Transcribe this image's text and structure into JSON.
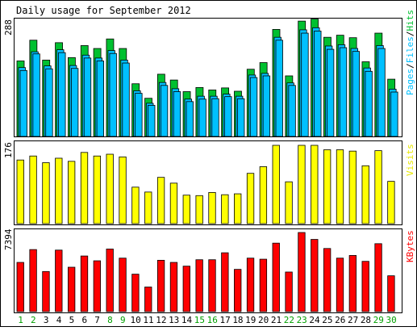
{
  "colors": {
    "background": "#FFFFFF",
    "panel_border": "#000000",
    "hits": "#00C030",
    "files": "#00C0FF",
    "pages": "#00C0FF",
    "visits": "#FFFF00",
    "kbytes": "#FF0000",
    "weekday_label": "#000000",
    "weekend_label": "#00A000"
  },
  "chart_data": [
    {
      "type": "bar",
      "title": "Daily usage for September 2012",
      "ymax_label": "288",
      "legend": {
        "pages": "Pages",
        "sep1": "/",
        "files": "Files",
        "sep2": "/",
        "hits": "Hits"
      },
      "categories": [
        "1",
        "2",
        "3",
        "4",
        "5",
        "6",
        "7",
        "8",
        "9",
        "10",
        "11",
        "12",
        "13",
        "14",
        "15",
        "16",
        "17",
        "18",
        "19",
        "20",
        "21",
        "22",
        "23",
        "24",
        "25",
        "26",
        "27",
        "28",
        "29",
        "30"
      ],
      "ylim": [
        0,
        288
      ],
      "series": [
        {
          "name": "Hits",
          "values": [
            182,
            232,
            184,
            226,
            190,
            219,
            212,
            235,
            212,
            127,
            92,
            150,
            136,
            108,
            118,
            112,
            117,
            109,
            162,
            178,
            258,
            146,
            278,
            283,
            239,
            244,
            238,
            180,
            249,
            138
          ]
        },
        {
          "name": "Files",
          "values": [
            166,
            204,
            170,
            209,
            171,
            196,
            189,
            207,
            184,
            110,
            80,
            130,
            115,
            90,
            97,
            97,
            102,
            97,
            148,
            152,
            239,
            129,
            257,
            262,
            218,
            221,
            212,
            165,
            219,
            114
          ]
        },
        {
          "name": "Pages",
          "values": [
            159,
            199,
            163,
            202,
            164,
            189,
            182,
            200,
            177,
            104,
            75,
            123,
            108,
            84,
            90,
            91,
            96,
            91,
            142,
            146,
            232,
            123,
            249,
            254,
            210,
            214,
            205,
            157,
            212,
            107
          ]
        }
      ]
    },
    {
      "type": "bar",
      "ymax_label": "176",
      "legend": "Visits",
      "ylim": [
        0,
        176
      ],
      "series": [
        {
          "name": "Visits",
          "values": [
            143,
            152,
            137,
            147,
            140,
            160,
            152,
            156,
            150,
            82,
            71,
            104,
            91,
            64,
            63,
            70,
            65,
            67,
            113,
            128,
            176,
            94,
            176,
            176,
            166,
            166,
            163,
            130,
            164,
            95
          ]
        }
      ]
    },
    {
      "type": "bar",
      "ymax_label": "7394",
      "legend": "KBytes",
      "ylim": [
        0,
        7394
      ],
      "series": [
        {
          "name": "KBytes",
          "values": [
            4600,
            5800,
            3750,
            5750,
            4150,
            5200,
            4750,
            5850,
            5000,
            3500,
            2300,
            4800,
            4600,
            4250,
            4850,
            4850,
            5500,
            3950,
            5000,
            4900,
            6400,
            3700,
            7394,
            6750,
            5900,
            5000,
            5250,
            4700,
            6350,
            3350
          ]
        }
      ]
    }
  ],
  "x_axis": {
    "labels": [
      "1",
      "2",
      "3",
      "4",
      "5",
      "6",
      "7",
      "8",
      "9",
      "10",
      "11",
      "12",
      "13",
      "14",
      "15",
      "16",
      "17",
      "18",
      "19",
      "20",
      "21",
      "22",
      "23",
      "24",
      "25",
      "26",
      "27",
      "28",
      "29",
      "30"
    ],
    "weekend_days": [
      1,
      2,
      8,
      9,
      15,
      16,
      22,
      23,
      29,
      30
    ]
  }
}
